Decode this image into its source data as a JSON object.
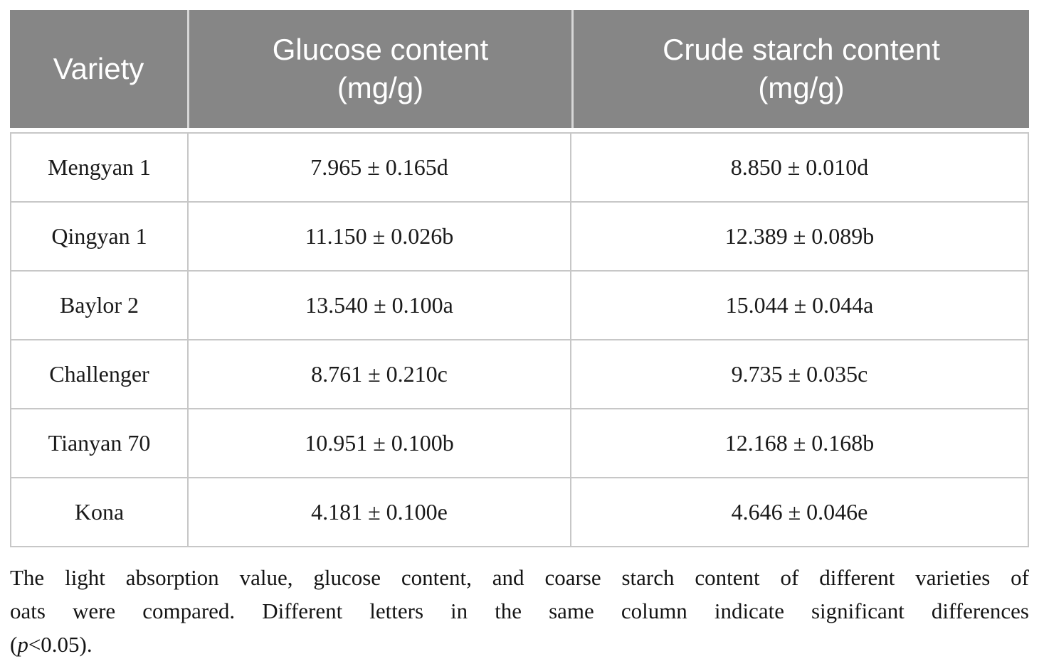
{
  "table": {
    "header": {
      "bg_color": "#868686",
      "text_color": "#ffffff",
      "columns": [
        {
          "title": "Variety",
          "unit": ""
        },
        {
          "title": "Glucose content",
          "unit": "(mg/g)"
        },
        {
          "title": "Crude starch content",
          "unit": "(mg/g)"
        }
      ]
    },
    "rows": [
      {
        "variety": "Mengyan 1",
        "glucose": "7.965 ± 0.165d",
        "starch": "8.850 ± 0.010d"
      },
      {
        "variety": "Qingyan 1",
        "glucose": "11.150 ± 0.026b",
        "starch": "12.389 ± 0.089b"
      },
      {
        "variety": "Baylor 2",
        "glucose": "13.540 ± 0.100a",
        "starch": "15.044 ± 0.044a"
      },
      {
        "variety": "Challenger",
        "glucose": "8.761 ± 0.210c",
        "starch": "9.735 ± 0.035c"
      },
      {
        "variety": "Tianyan 70",
        "glucose": "10.951 ± 0.100b",
        "starch": "12.168 ± 0.168b"
      },
      {
        "variety": "Kona",
        "glucose": "4.181 ± 0.100e",
        "starch": "4.646 ± 0.046e"
      }
    ]
  },
  "footnote": {
    "line1": "The light absorption value, glucose content, and coarse starch content of different varieties of",
    "line2": "oats were compared. Different letters in the same column indicate significant differences",
    "line3_pre": "(",
    "line3_italic": "p",
    "line3_post": "<0.05)."
  },
  "chart_data": {
    "type": "table",
    "columns": [
      "Variety",
      "Glucose content (mg/g)",
      "Crude starch content (mg/g)"
    ],
    "rows": [
      [
        "Mengyan 1",
        "7.965 ± 0.165d",
        "8.850 ± 0.010d"
      ],
      [
        "Qingyan 1",
        "11.150 ± 0.026b",
        "12.389 ± 0.089b"
      ],
      [
        "Baylor 2",
        "13.540 ± 0.100a",
        "15.044 ± 0.044a"
      ],
      [
        "Challenger",
        "8.761 ± 0.210c",
        "9.735 ± 0.035c"
      ],
      [
        "Tianyan 70",
        "10.951 ± 0.100b",
        "12.168 ± 0.168b"
      ],
      [
        "Kona",
        "4.181 ± 0.100e",
        "4.646 ± 0.046e"
      ]
    ],
    "glucose_values": [
      7.965,
      11.15,
      13.54,
      8.761,
      10.951,
      4.181
    ],
    "starch_values": [
      8.85,
      12.389,
      15.044,
      9.735,
      12.168,
      4.646
    ]
  }
}
